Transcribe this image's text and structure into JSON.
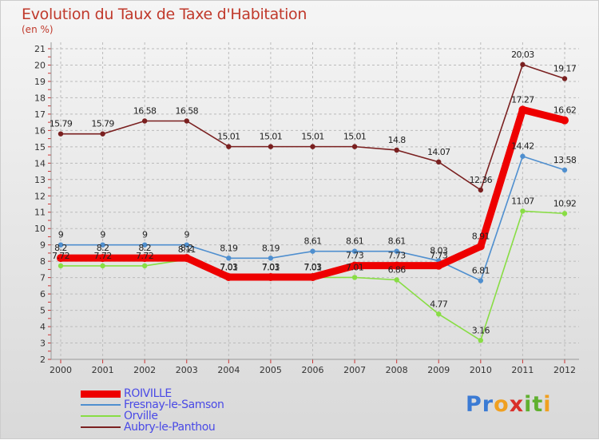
{
  "title": "Evolution du Taux de Taxe d'Habitation",
  "unit_label": "(en %)",
  "brand": {
    "text": "Proxiti",
    "letters": [
      "P",
      "r",
      "o",
      "x",
      "i",
      "t",
      "i"
    ],
    "colors": [
      "#3b7bd4",
      "#3b7bd4",
      "#f0a020",
      "#d9302a",
      "#60b030",
      "#60b030",
      "#f0a020"
    ]
  },
  "chart_data": {
    "type": "line",
    "categories": [
      "2000",
      "2001",
      "2002",
      "2003",
      "2004",
      "2005",
      "2006",
      "2007",
      "2008",
      "2009",
      "2010",
      "2011",
      "2012"
    ],
    "ylim": [
      2,
      21
    ],
    "yticks": [
      "2",
      "3",
      "4",
      "5",
      "6",
      "7",
      "8",
      "9",
      "10",
      "11",
      "12",
      "13",
      "14",
      "15",
      "16",
      "17",
      "18",
      "19",
      "20",
      "21"
    ],
    "grid": true,
    "legend_position": "bottom-left",
    "series": [
      {
        "name": "ROIVILLE",
        "color": "#ee0000",
        "thick": true,
        "values": [
          8.2,
          8.2,
          8.2,
          8.2,
          7.03,
          7.03,
          7.03,
          7.73,
          7.73,
          7.73,
          8.91,
          17.27,
          16.62
        ],
        "labels": [
          "8.2",
          "8.2",
          "8.2",
          "8.2",
          "7.03",
          "7.03",
          "7.03",
          "7.73",
          "7.73",
          "7.73",
          "8.91",
          "17.27",
          "16.62"
        ]
      },
      {
        "name": "Fresnay-le-Samson",
        "color": "#4f8fcf",
        "thick": false,
        "values": [
          9,
          9,
          9,
          9,
          8.19,
          8.19,
          8.61,
          8.61,
          8.61,
          8.03,
          6.81,
          14.42,
          13.58
        ],
        "labels": [
          "9",
          "9",
          "9",
          "9",
          "8.19",
          "8.19",
          "8.61",
          "8.61",
          "8.61",
          "8.03",
          "6.81",
          "14.42",
          "13.58"
        ]
      },
      {
        "name": "Orville",
        "color": "#88dd44",
        "thick": false,
        "values": [
          7.72,
          7.72,
          7.72,
          8.11,
          7.01,
          7.01,
          7.01,
          7.01,
          6.86,
          4.77,
          3.16,
          11.07,
          10.92
        ],
        "labels": [
          "7.72",
          "7.72",
          "7.72",
          "8.11",
          "7.01",
          "7.01",
          "7.01",
          "7.01",
          "6.86",
          "4.77",
          "3.16",
          "11.07",
          "10.92"
        ]
      },
      {
        "name": "Aubry-le-Panthou",
        "color": "#7a2020",
        "thick": false,
        "values": [
          15.79,
          15.79,
          16.58,
          16.58,
          15.01,
          15.01,
          15.01,
          15.01,
          14.8,
          14.07,
          12.36,
          20.03,
          19.17
        ],
        "labels": [
          "15.79",
          "15.79",
          "16.58",
          "16.58",
          "15.01",
          "15.01",
          "15.01",
          "15.01",
          "14.8",
          "14.07",
          "12.36",
          "20.03",
          "19.17"
        ]
      }
    ]
  }
}
